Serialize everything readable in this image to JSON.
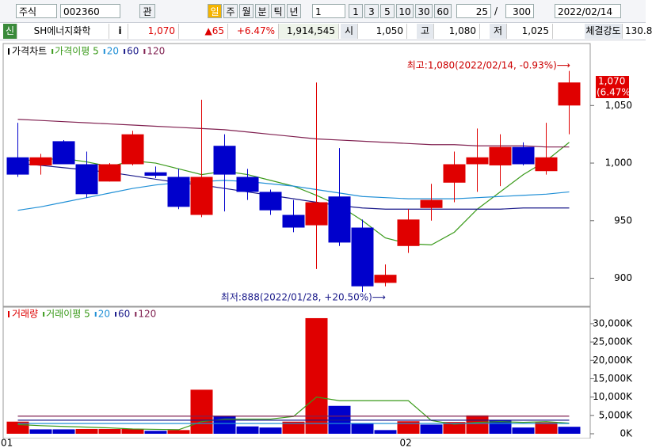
{
  "toolbar": {
    "market": "주식",
    "code": "002360",
    "watch": "관",
    "periods": [
      "일",
      "주",
      "월",
      "분",
      "틱",
      "년"
    ],
    "unit": "1",
    "quick": [
      "1",
      "3",
      "5",
      "10",
      "30",
      "60"
    ],
    "count": "25",
    "slash": "/",
    "total": "300",
    "date": "2022/02/14"
  },
  "info_bar": {
    "tag": "신",
    "name": "SH에너지화학",
    "info": "i",
    "price": "1,070",
    "change": "▲65",
    "rate": "+6.47%",
    "volume": "1,914,545",
    "open_label": "시",
    "open": "1,050",
    "high_label": "고",
    "high": "1,080",
    "low_label": "저",
    "low": "1,025",
    "strength_label": "체결강도",
    "strength": "130.8"
  },
  "chart_data": [
    {
      "type": "candlestick",
      "title": "가격차트",
      "categories": [
        "01",
        null,
        null,
        null,
        null,
        null,
        null,
        null,
        null,
        null,
        null,
        null,
        null,
        null,
        null,
        null,
        null,
        "02",
        null,
        null,
        null,
        null,
        null,
        null,
        null
      ],
      "open": [
        1005,
        998,
        1019,
        999,
        984,
        999,
        992,
        988,
        955,
        1015,
        988,
        975,
        955,
        946,
        971,
        944,
        896,
        928,
        961,
        983,
        999,
        998,
        1014,
        993,
        1050
      ],
      "high": [
        1035,
        1008,
        1020,
        1010,
        1000,
        1028,
        997,
        995,
        1055,
        1025,
        995,
        977,
        968,
        1070,
        1013,
        951,
        912,
        960,
        982,
        1010,
        1030,
        1025,
        1018,
        1035,
        1080
      ],
      "low": [
        988,
        990,
        999,
        970,
        984,
        998,
        987,
        960,
        953,
        958,
        968,
        955,
        940,
        908,
        928,
        888,
        893,
        922,
        950,
        966,
        975,
        980,
        998,
        990,
        1025
      ],
      "close": [
        990,
        1005,
        999,
        973,
        999,
        1025,
        989,
        962,
        988,
        990,
        975,
        959,
        944,
        966,
        931,
        893,
        903,
        951,
        968,
        999,
        1005,
        1014,
        999,
        1005,
        1070
      ],
      "up_color": "#e00000",
      "down_color": "#0000cc",
      "series": [
        {
          "name": "가격이평 5",
          "color": "#3a9a1a",
          "values": [
            1002,
            1003,
            1004,
            1001,
            997,
            1002,
            1000,
            995,
            990,
            993,
            990,
            985,
            980,
            972,
            963,
            950,
            935,
            930,
            929,
            940,
            960,
            975,
            990,
            1002,
            1018
          ]
        },
        {
          "name": "20",
          "color": "#1f8fd6",
          "values": [
            959,
            962,
            966,
            970,
            974,
            978,
            981,
            983,
            984,
            985,
            984,
            982,
            980,
            977,
            974,
            971,
            970,
            969,
            969,
            969,
            970,
            971,
            972,
            973,
            975
          ]
        },
        {
          "name": "60",
          "color": "#1a1a8a",
          "values": [
            1000,
            998,
            996,
            994,
            992,
            989,
            986,
            983,
            981,
            978,
            975,
            972,
            969,
            966,
            963,
            961,
            960,
            960,
            960,
            960,
            960,
            960,
            961,
            961,
            961
          ]
        },
        {
          "name": "120",
          "color": "#802050",
          "values": [
            1038,
            1037,
            1036,
            1035,
            1034,
            1033,
            1032,
            1031,
            1030,
            1029,
            1027,
            1025,
            1023,
            1021,
            1020,
            1019,
            1018,
            1017,
            1016,
            1016,
            1015,
            1015,
            1015,
            1014,
            1014
          ]
        }
      ],
      "ylim": [
        877,
        1099
      ],
      "yticks": [
        900,
        950,
        {
          "value": 1000,
          "label": "1,000"
        },
        {
          "value": 1050,
          "label": "1,050"
        }
      ],
      "high_annotation": "최고:1,080(2022/02/14, -0.93%)⟶",
      "low_annotation": "최저:888(2022/01/28, +20.50%)⟶",
      "last_price": "1,070",
      "last_rate": "(6.47%)"
    },
    {
      "type": "bar",
      "title": "거래량",
      "values": [
        3300,
        1200,
        1200,
        1300,
        1300,
        1300,
        800,
        1000,
        12000,
        4900,
        2000,
        1700,
        3300,
        31500,
        7600,
        2800,
        1000,
        3400,
        2500,
        3200,
        5000,
        3600,
        1700,
        3100,
        1900
      ],
      "bar_colors": [
        "#e00000",
        "#0000cc",
        "#0000cc",
        "#e00000",
        "#e00000",
        "#e00000",
        "#0000cc",
        "#e00000",
        "#e00000",
        "#0000cc",
        "#0000cc",
        "#0000cc",
        "#e00000",
        "#e00000",
        "#0000cc",
        "#0000cc",
        "#0000cc",
        "#e00000",
        "#0000cc",
        "#e00000",
        "#e00000",
        "#0000cc",
        "#0000cc",
        "#e00000",
        "#0000cc"
      ],
      "series": [
        {
          "name": "거래이평 5",
          "color": "#3a9a1a",
          "values": [
            2500,
            2200,
            2000,
            1800,
            1600,
            1300,
            1200,
            1100,
            3300,
            4000,
            4000,
            4000,
            4700,
            10000,
            9000,
            9000,
            9000,
            9000,
            3600,
            2600,
            3100,
            3300,
            3100,
            3300,
            2900
          ]
        },
        {
          "name": "20",
          "color": "#1f8fd6",
          "values": [
            2800,
            2800,
            2800,
            2800,
            2800,
            2800,
            2800,
            2800,
            2800,
            2800,
            2800,
            2800,
            2800,
            2800,
            2800,
            2800,
            2800,
            2800,
            2800,
            2800,
            2800,
            2800,
            2800,
            2800,
            2800
          ]
        },
        {
          "name": "60",
          "color": "#1a1a8a",
          "values": [
            3700,
            3700,
            3700,
            3700,
            3700,
            3700,
            3700,
            3700,
            3700,
            3700,
            3700,
            3700,
            3700,
            3700,
            3700,
            3700,
            3700,
            3700,
            3700,
            3700,
            3700,
            3700,
            3700,
            3700,
            3700
          ]
        },
        {
          "name": "120",
          "color": "#802050",
          "values": [
            4800,
            4800,
            4800,
            4800,
            4800,
            4800,
            4800,
            4800,
            4800,
            4800,
            4800,
            4800,
            4800,
            4800,
            4800,
            4800,
            4800,
            4800,
            4800,
            4800,
            4800,
            4800,
            4800,
            4800,
            4800
          ]
        }
      ],
      "ylim": [
        0,
        33000
      ],
      "yticks": [
        {
          "value": 0,
          "label": "0K"
        },
        {
          "value": 5000,
          "label": "5,000K"
        },
        {
          "value": 10000,
          "label": "10,000K"
        },
        {
          "value": 15000,
          "label": "15,000K"
        },
        {
          "value": 20000,
          "label": "20,000K"
        },
        {
          "value": 25000,
          "label": "25,000K"
        },
        {
          "value": 30000,
          "label": "30,000K"
        }
      ]
    }
  ]
}
